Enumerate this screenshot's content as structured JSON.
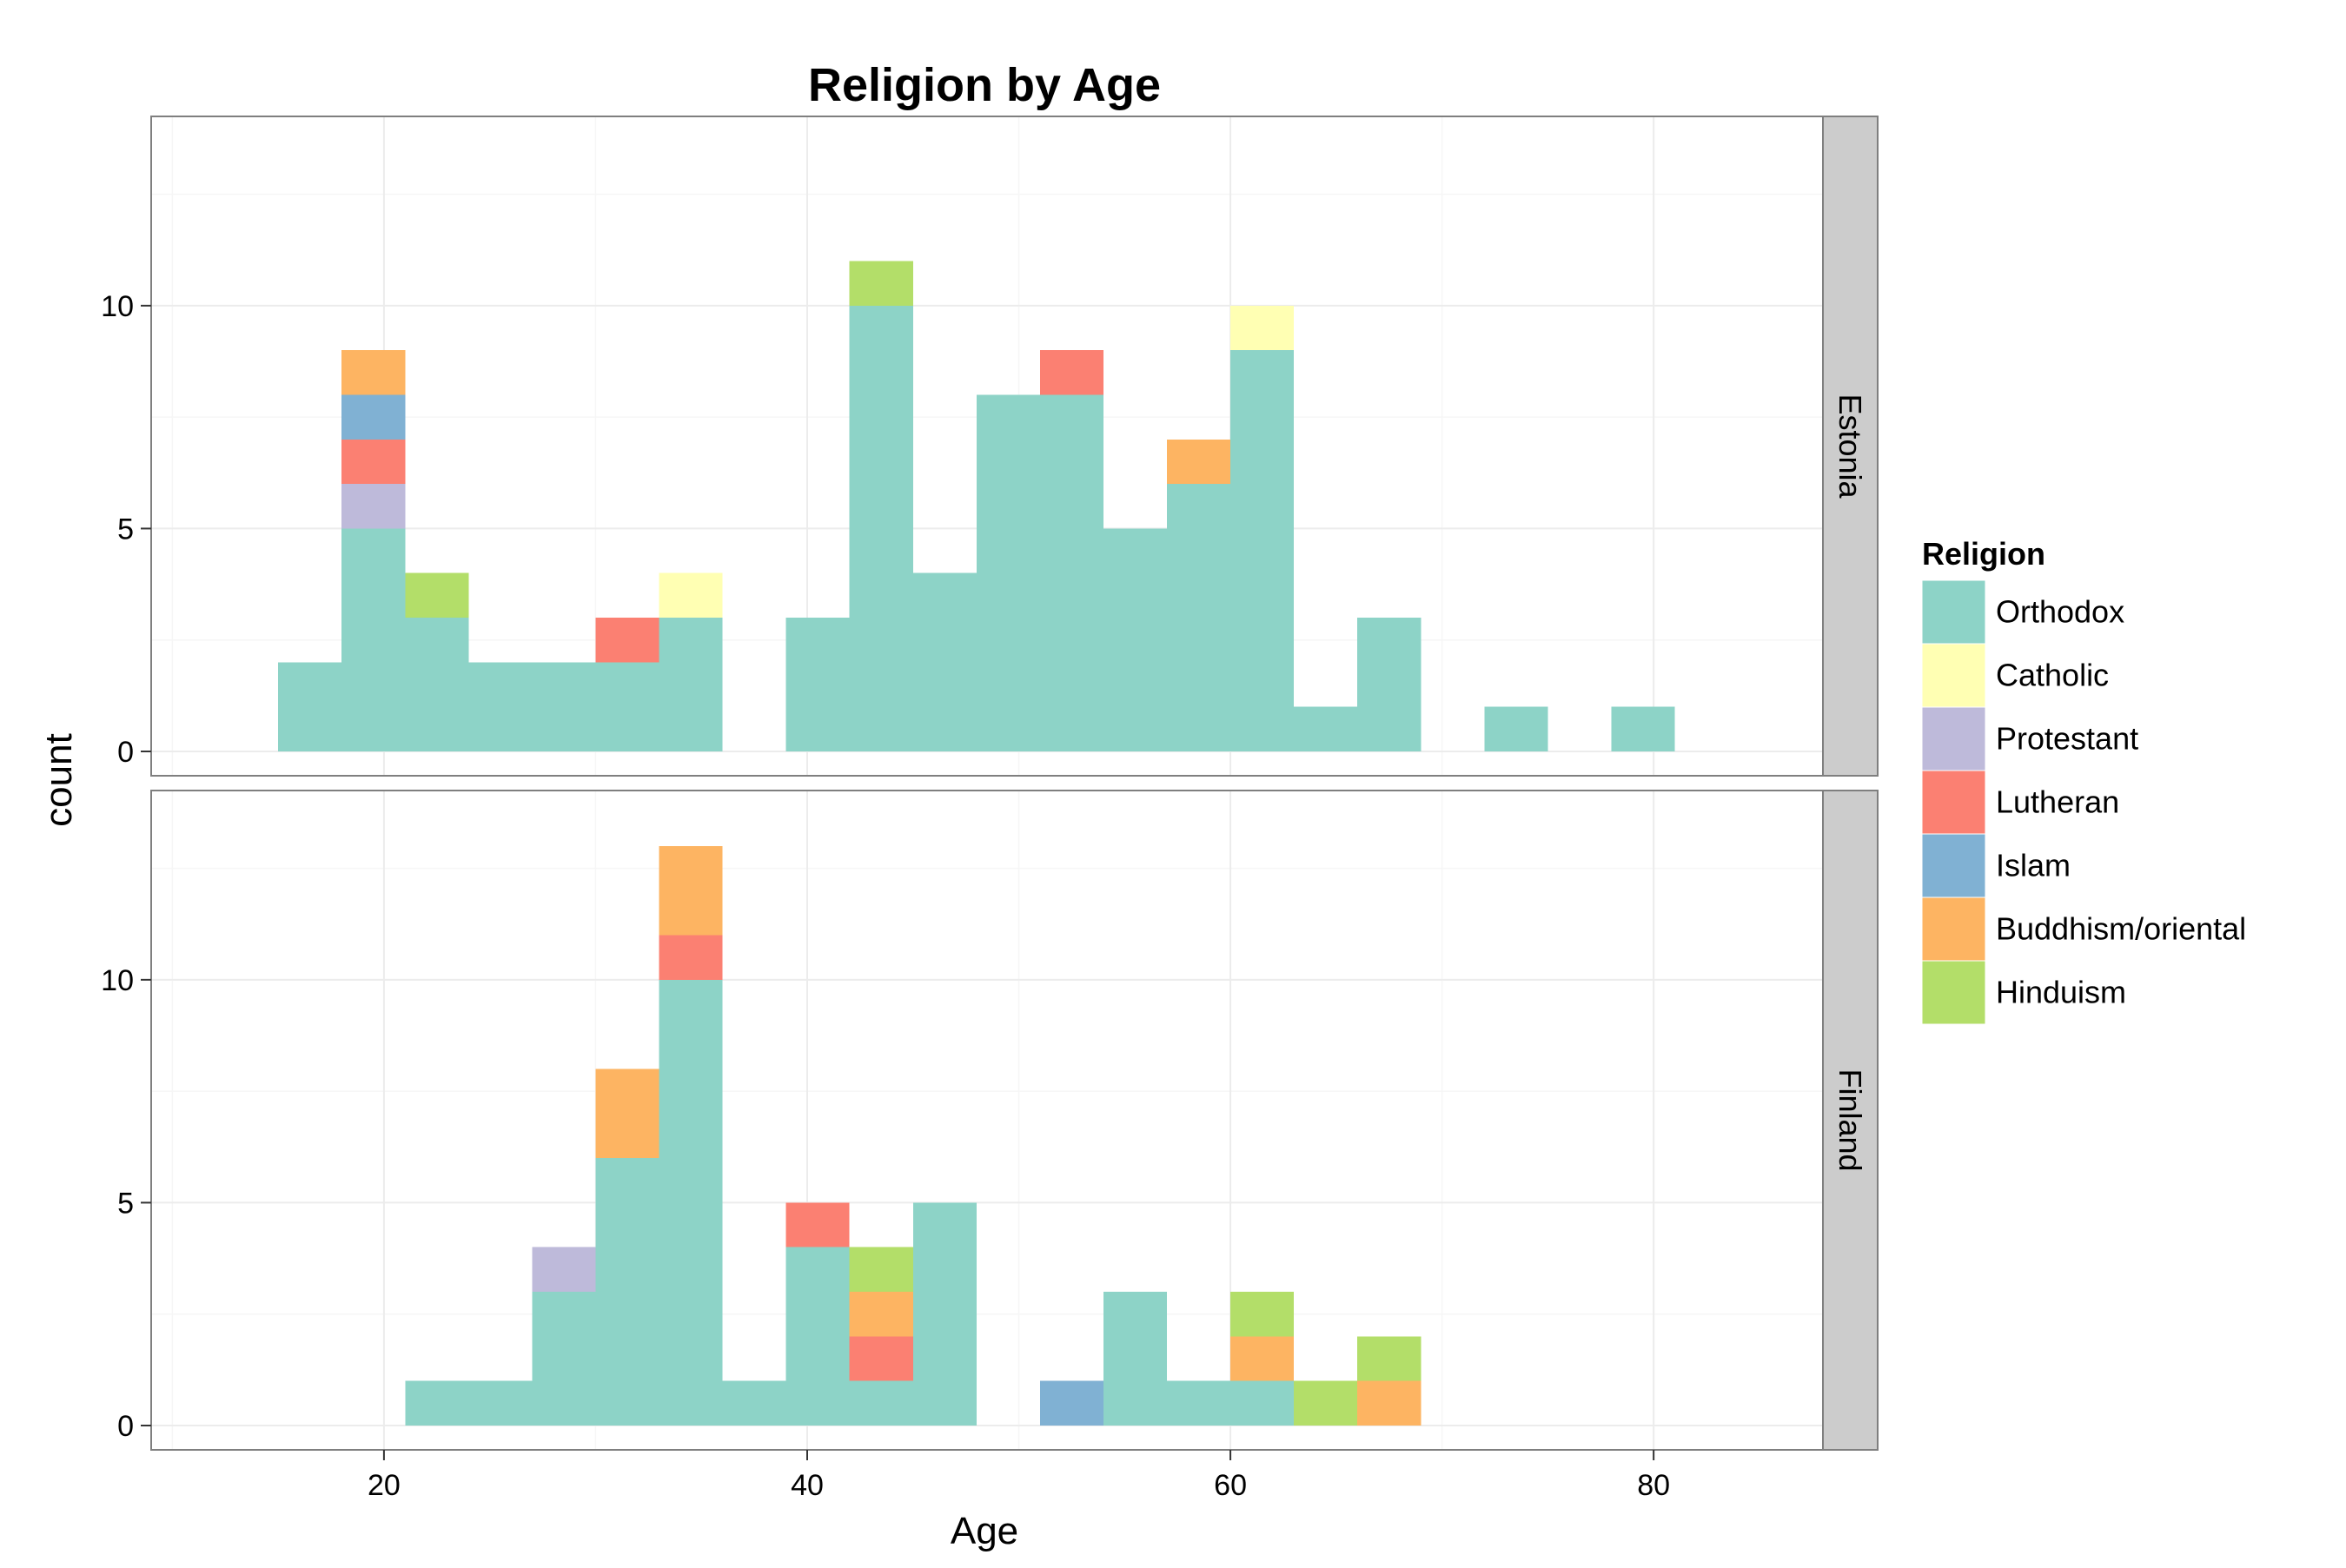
{
  "chart_data": {
    "type": "bar",
    "subtype": "stacked histogram, faceted by country",
    "title": "Religion by Age",
    "xlabel": "Age",
    "ylabel": "count",
    "x_ticks": [
      20,
      40,
      60,
      80
    ],
    "y_ticks": [
      0,
      5,
      10
    ],
    "xlim": [
      9,
      88
    ],
    "ylim": [
      0,
      13.7
    ],
    "bin_width": 3,
    "grid": true,
    "legend": {
      "title": "Religion",
      "position": "right",
      "entries": [
        {
          "name": "Orthodox",
          "color": "#8dd3c7"
        },
        {
          "name": "Catholic",
          "color": "#ffffb3"
        },
        {
          "name": "Protestant",
          "color": "#bebada"
        },
        {
          "name": "Lutheran",
          "color": "#fb8072"
        },
        {
          "name": "Islam",
          "color": "#80b1d3"
        },
        {
          "name": "Buddhism/oriental",
          "color": "#fdb462"
        },
        {
          "name": "Hinduism",
          "color": "#b3de69"
        }
      ]
    },
    "facets": [
      {
        "label": "Estonia",
        "bins": [
          {
            "x0": 15,
            "x1": 18,
            "counts": {
              "Orthodox": 2
            }
          },
          {
            "x0": 18,
            "x1": 21,
            "counts": {
              "Orthodox": 5,
              "Protestant": 1,
              "Lutheran": 1,
              "Islam": 1,
              "Buddhism/oriental": 1
            }
          },
          {
            "x0": 21,
            "x1": 24,
            "counts": {
              "Orthodox": 3,
              "Hinduism": 1
            }
          },
          {
            "x0": 24,
            "x1": 27,
            "counts": {
              "Orthodox": 2
            }
          },
          {
            "x0": 27,
            "x1": 30,
            "counts": {
              "Orthodox": 2
            }
          },
          {
            "x0": 30,
            "x1": 33,
            "counts": {
              "Orthodox": 2,
              "Lutheran": 1
            }
          },
          {
            "x0": 33,
            "x1": 36,
            "counts": {
              "Orthodox": 3,
              "Catholic": 1
            }
          },
          {
            "x0": 39,
            "x1": 42,
            "counts": {
              "Orthodox": 3
            }
          },
          {
            "x0": 42,
            "x1": 45,
            "counts": {
              "Orthodox": 10,
              "Hinduism": 1
            }
          },
          {
            "x0": 45,
            "x1": 48,
            "counts": {
              "Orthodox": 4
            }
          },
          {
            "x0": 48,
            "x1": 51,
            "counts": {
              "Orthodox": 8
            }
          },
          {
            "x0": 51,
            "x1": 54,
            "counts": {
              "Orthodox": 8,
              "Lutheran": 1
            }
          },
          {
            "x0": 54,
            "x1": 57,
            "counts": {
              "Orthodox": 5
            }
          },
          {
            "x0": 57,
            "x1": 60,
            "counts": {
              "Orthodox": 6,
              "Buddhism/oriental": 1
            }
          },
          {
            "x0": 60,
            "x1": 63,
            "counts": {
              "Orthodox": 9,
              "Catholic": 1
            }
          },
          {
            "x0": 63,
            "x1": 66,
            "counts": {
              "Orthodox": 1
            }
          },
          {
            "x0": 66,
            "x1": 69,
            "counts": {
              "Orthodox": 3
            }
          },
          {
            "x0": 72,
            "x1": 75,
            "counts": {
              "Orthodox": 1
            }
          },
          {
            "x0": 78,
            "x1": 81,
            "counts": {
              "Orthodox": 1
            }
          }
        ]
      },
      {
        "label": "Finland",
        "bins": [
          {
            "x0": 21,
            "x1": 24,
            "counts": {
              "Orthodox": 1
            }
          },
          {
            "x0": 24,
            "x1": 27,
            "counts": {
              "Orthodox": 1
            }
          },
          {
            "x0": 27,
            "x1": 30,
            "counts": {
              "Orthodox": 3,
              "Protestant": 1
            }
          },
          {
            "x0": 30,
            "x1": 33,
            "counts": {
              "Orthodox": 6,
              "Buddhism/oriental": 2
            }
          },
          {
            "x0": 33,
            "x1": 36,
            "counts": {
              "Orthodox": 10,
              "Lutheran": 1,
              "Buddhism/oriental": 2
            }
          },
          {
            "x0": 36,
            "x1": 39,
            "counts": {
              "Orthodox": 1
            }
          },
          {
            "x0": 39,
            "x1": 42,
            "counts": {
              "Orthodox": 4,
              "Lutheran": 1
            }
          },
          {
            "x0": 42,
            "x1": 45,
            "counts": {
              "Orthodox": 1,
              "Lutheran": 1,
              "Buddhism/oriental": 1,
              "Hinduism": 1
            }
          },
          {
            "x0": 45,
            "x1": 48,
            "counts": {
              "Orthodox": 5
            }
          },
          {
            "x0": 51,
            "x1": 54,
            "counts": {
              "Islam": 1
            }
          },
          {
            "x0": 54,
            "x1": 57,
            "counts": {
              "Orthodox": 3
            }
          },
          {
            "x0": 57,
            "x1": 60,
            "counts": {
              "Orthodox": 1
            }
          },
          {
            "x0": 60,
            "x1": 63,
            "counts": {
              "Orthodox": 1,
              "Buddhism/oriental": 1,
              "Hinduism": 1
            }
          },
          {
            "x0": 63,
            "x1": 66,
            "counts": {
              "Hinduism": 1
            }
          },
          {
            "x0": 66,
            "x1": 69,
            "counts": {
              "Buddhism/oriental": 1,
              "Hinduism": 1
            }
          }
        ]
      }
    ]
  }
}
